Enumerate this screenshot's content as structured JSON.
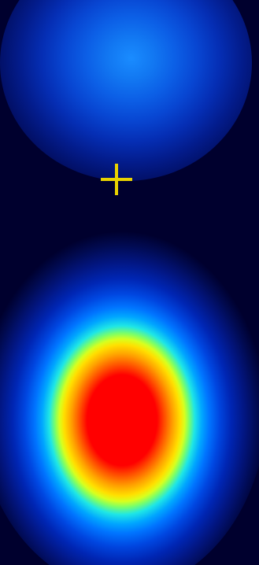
{
  "image": {
    "description_colors": {
      "background": "#00002e",
      "crosshair": "#e8d200",
      "peak_color": "#ff0000",
      "low_color": "#0046e0"
    },
    "markers": [
      {
        "icon": "crosshair-icon"
      }
    ]
  }
}
